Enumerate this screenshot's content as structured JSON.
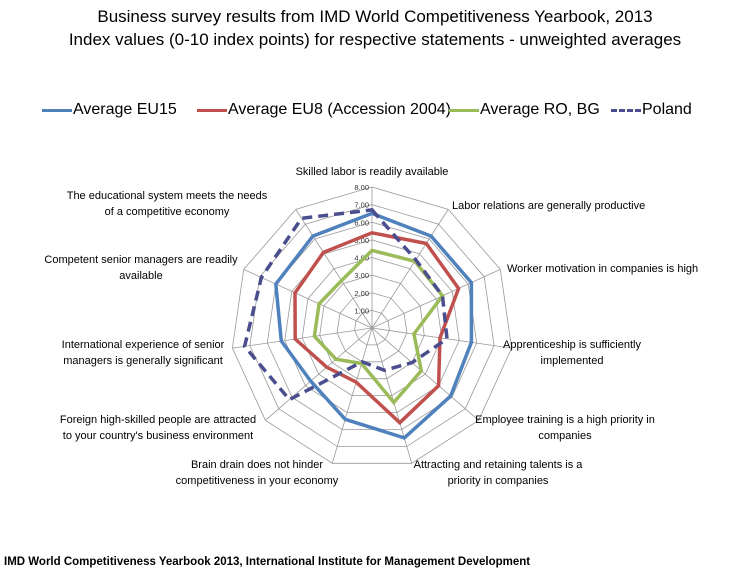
{
  "title_line1": "Business survey results from IMD World Competitiveness Yearbook, 2013",
  "title_line2": "Index values (0-10 index points) for respective statements - unweighted averages",
  "source": "IMD World Competitiveness Yearbook 2013, International Institute for Management Development",
  "chart_data": {
    "type": "radar",
    "title": "Business survey results from IMD World Competitiveness Yearbook, 2013",
    "subtitle": "Index values (0-10 index points) for respective statements - unweighted averages",
    "rmin": 0,
    "rmax": 8,
    "ticks": [
      1,
      2,
      3,
      4,
      5,
      6,
      7,
      8
    ],
    "tick_labels": [
      "1.00",
      "2.00",
      "3.00",
      "4.00",
      "5.00",
      "6.00",
      "7.00",
      "8.00"
    ],
    "grid": true,
    "legend_position": "top",
    "categories": [
      "Skilled labor is readily available",
      "Labor relations are generally productive",
      "Worker motivation in companies is high",
      "Apprenticeship is sufficiently implemented",
      "Employee training is a high priority in companies",
      "Attracting and retaining talents is a priority in companies",
      "Brain drain does not hinder competitiveness in your economy",
      "Foreign high-skilled people are attracted to your country's business environment",
      "International experience of senior managers is generally significant",
      "Competent senior managers are readily available",
      "The educational system meets the needs of a competitive economy"
    ],
    "category_lines": [
      [
        "Skilled labor is readily available"
      ],
      [
        "Labor relations are generally productive"
      ],
      [
        "Worker motivation in companies is high"
      ],
      [
        "Apprenticeship is sufficiently",
        "implemented"
      ],
      [
        "Employee training is a high priority in",
        "companies"
      ],
      [
        "Attracting and retaining talents is a",
        "priority in companies"
      ],
      [
        "Brain drain does not hinder",
        "competitiveness in your economy"
      ],
      [
        "Foreign high-skilled people are attracted",
        "to your country's business environment"
      ],
      [
        "International experience of senior",
        "managers is generally significant"
      ],
      [
        "Competent senior managers are readily",
        "available"
      ],
      [
        "The educational system meets the needs",
        "of a competitive economy"
      ]
    ],
    "series": [
      {
        "name": "Average EU15",
        "color": "#4f81bd",
        "dash": false,
        "values": [
          6.5,
          6.2,
          6.2,
          5.7,
          5.9,
          6.5,
          5.4,
          4.6,
          5.2,
          6.0,
          6.2
        ]
      },
      {
        "name": "Average EU8 (Accession 2004)",
        "color": "#c0504d",
        "dash": false,
        "values": [
          5.4,
          5.7,
          5.4,
          3.9,
          5.0,
          5.6,
          3.2,
          3.4,
          4.4,
          4.8,
          5.1
        ]
      },
      {
        "name": "Average RO, BG",
        "color": "#9bbb59",
        "dash": false,
        "values": [
          4.4,
          4.5,
          4.4,
          2.4,
          3.7,
          4.4,
          2.1,
          2.7,
          3.3,
          3.3,
          3.2
        ]
      },
      {
        "name": "Poland",
        "color": "#4a4e8f",
        "dash": true,
        "values": [
          6.7,
          4.6,
          4.4,
          4.3,
          3.0,
          2.5,
          2.0,
          6.2,
          7.3,
          6.9,
          7.4
        ]
      }
    ]
  }
}
